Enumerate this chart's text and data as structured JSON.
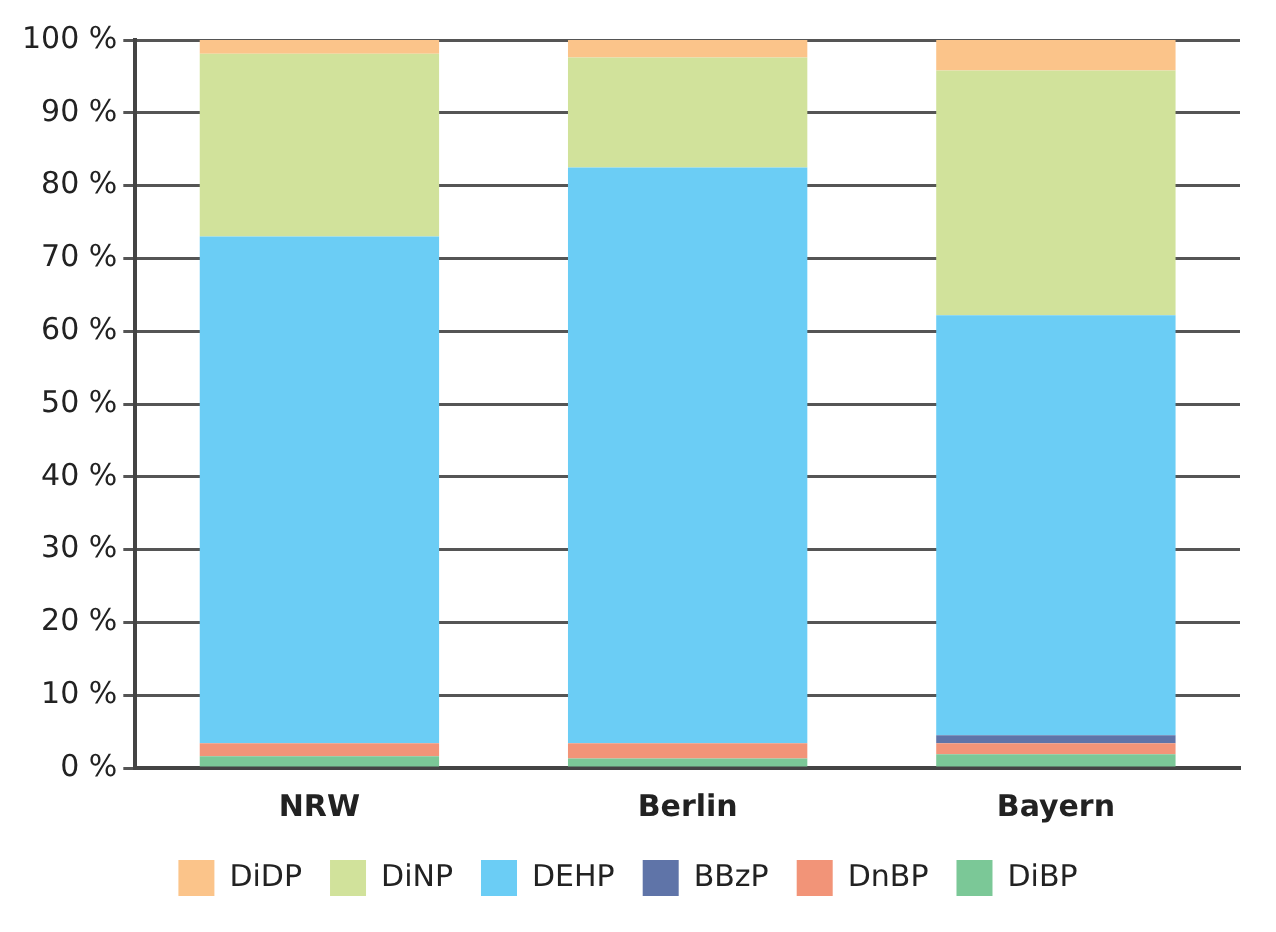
{
  "chart_data": {
    "type": "bar",
    "stacked": true,
    "categories": [
      "NRW",
      "Berlin",
      "Bayern"
    ],
    "series": [
      {
        "name": "DiBP",
        "color": "#7bc897",
        "values": [
          1.6,
          1.3,
          1.9
        ]
      },
      {
        "name": "DnBP",
        "color": "#f29478",
        "values": [
          1.8,
          2.1,
          1.5
        ]
      },
      {
        "name": "BBzP",
        "color": "#5f74a8",
        "values": [
          null,
          null,
          1.1
        ]
      },
      {
        "name": "DEHP",
        "color": "#6bcdf5",
        "values": [
          69.6,
          79.1,
          57.7
        ]
      },
      {
        "name": "DiNP",
        "color": "#d1e29b",
        "values": [
          25.1,
          15.1,
          33.6
        ]
      },
      {
        "name": "DiDP",
        "color": "#fbc48a",
        "values": [
          1.9,
          2.4,
          4.2
        ]
      }
    ],
    "ylim": [
      0,
      100
    ],
    "yticks": [
      {
        "value": 0,
        "label": "0 %"
      },
      {
        "value": 10,
        "label": "10 %"
      },
      {
        "value": 20,
        "label": "20 %"
      },
      {
        "value": 30,
        "label": "30 %"
      },
      {
        "value": 40,
        "label": "40 %"
      },
      {
        "value": 50,
        "label": "50 %"
      },
      {
        "value": 60,
        "label": "60 %"
      },
      {
        "value": 70,
        "label": "70 %"
      },
      {
        "value": 80,
        "label": "80 %"
      },
      {
        "value": 90,
        "label": "90 %"
      },
      {
        "value": 100,
        "label": "100 %"
      }
    ],
    "grid": "y",
    "legend": "bottom"
  }
}
